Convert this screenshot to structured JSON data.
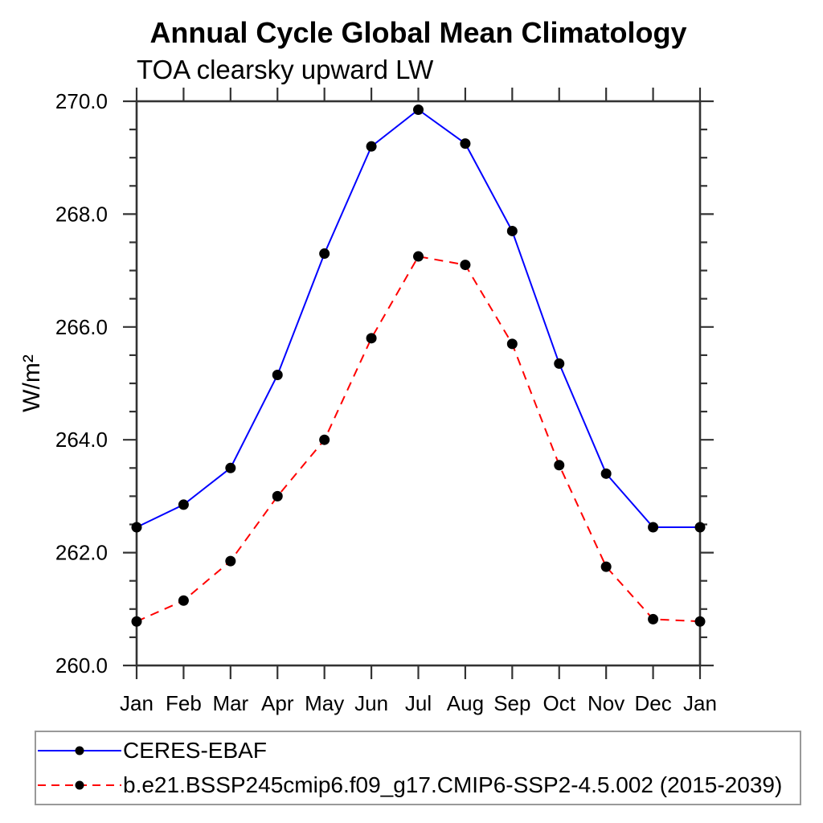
{
  "chart_data": {
    "type": "line",
    "title": "Annual Cycle Global Mean Climatology",
    "subtitle": "TOA clearsky upward LW",
    "xlabel": "",
    "ylabel": "W/m²",
    "categories": [
      "Jan",
      "Feb",
      "Mar",
      "Apr",
      "May",
      "Jun",
      "Jul",
      "Aug",
      "Sep",
      "Oct",
      "Nov",
      "Dec",
      "Jan"
    ],
    "ylim": [
      260.0,
      270.0
    ],
    "yticks_major": [
      260.0,
      262.0,
      264.0,
      266.0,
      268.0,
      270.0
    ],
    "ytick_labels": [
      "260.0",
      "262.0",
      "264.0",
      "266.0",
      "268.0",
      "270.0"
    ],
    "ytick_minor_step": 0.5,
    "grid": false,
    "legend_position": "bottom-left-box",
    "axis_color": "#333333",
    "marker_radius": 6.5,
    "series": [
      {
        "name": "CERES-EBAF",
        "color": "#0000ff",
        "line_style": "solid",
        "marker": "filled-circle",
        "marker_color": "#000000",
        "values": [
          262.45,
          262.85,
          263.5,
          265.15,
          267.3,
          269.2,
          269.85,
          269.25,
          267.7,
          265.35,
          263.4,
          262.45,
          262.45
        ]
      },
      {
        "name": "b.e21.BSSP245cmip6.f09_g17.CMIP6-SSP2-4.5.002 (2015-2039)",
        "color": "#ff0000",
        "line_style": "dashed",
        "marker": "filled-circle",
        "marker_color": "#000000",
        "values": [
          260.78,
          261.15,
          261.85,
          263.0,
          264.0,
          265.8,
          267.25,
          267.1,
          265.7,
          263.55,
          261.75,
          260.82,
          260.78
        ]
      }
    ]
  }
}
